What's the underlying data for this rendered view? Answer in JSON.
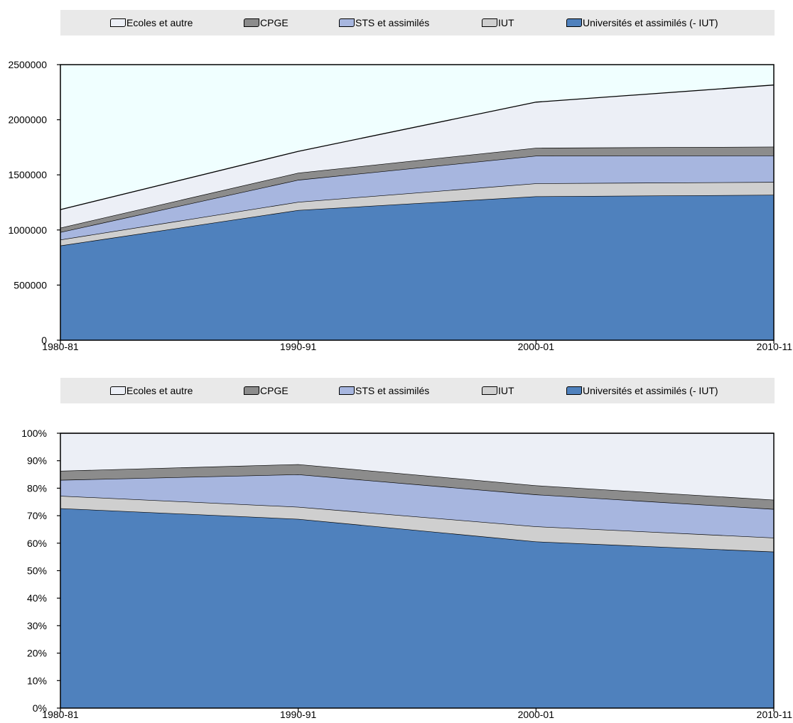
{
  "legend": {
    "items": [
      {
        "label": "Ecoles et autre",
        "color": "#eceff6"
      },
      {
        "label": "CPGE",
        "color": "#8c8c8c"
      },
      {
        "label": "STS et assimilés",
        "color": "#a7b6df"
      },
      {
        "label": "IUT",
        "color": "#cfcfcf"
      },
      {
        "label": "Universités et assimilés (- IUT)",
        "color": "#4f81bd"
      }
    ]
  },
  "colors": {
    "plot_background": "#f0ffff",
    "legend_background": "#e9e9e9",
    "outline": "#000000"
  },
  "chart_data": [
    {
      "type": "area",
      "stacked": true,
      "categories": [
        "1980-81",
        "1990-91",
        "2000-01",
        "2010-11"
      ],
      "series": [
        {
          "name": "Universités et assimilés (- IUT)",
          "values": [
            858000,
            1180000,
            1305000,
            1318000
          ]
        },
        {
          "name": "IUT",
          "values": [
            54000,
            74000,
            118000,
            117000
          ]
        },
        {
          "name": "STS et assimilés",
          "values": [
            68000,
            200000,
            250000,
            240000
          ]
        },
        {
          "name": "CPGE",
          "values": [
            40000,
            64000,
            72000,
            80000
          ]
        },
        {
          "name": "Ecoles et autre",
          "values": [
            165000,
            195000,
            415000,
            560000
          ]
        }
      ],
      "y_ticks": [
        "0",
        "500000",
        "1000000",
        "1500000",
        "2000000",
        "2500000"
      ],
      "ylim": [
        0,
        2500000
      ],
      "grid": false,
      "legend_position": "top"
    },
    {
      "type": "area",
      "stacked": true,
      "percent": true,
      "categories": [
        "1980-81",
        "1990-91",
        "2000-01",
        "2010-11"
      ],
      "series": [
        {
          "name": "Universités et assimilés (- IUT)",
          "values": [
            72.7,
            68.8,
            60.6,
            56.9
          ]
        },
        {
          "name": "IUT",
          "values": [
            4.5,
            4.4,
            5.5,
            5.1
          ]
        },
        {
          "name": "STS et assimilés",
          "values": [
            5.8,
            11.8,
            11.6,
            10.4
          ]
        },
        {
          "name": "CPGE",
          "values": [
            3.3,
            3.7,
            3.3,
            3.4
          ]
        },
        {
          "name": "Ecoles et autre",
          "values": [
            13.7,
            11.3,
            19.0,
            24.2
          ]
        }
      ],
      "y_ticks": [
        "0%",
        "10%",
        "20%",
        "30%",
        "40%",
        "50%",
        "60%",
        "70%",
        "80%",
        "90%",
        "100%"
      ],
      "ylim": [
        0,
        100
      ],
      "grid": false,
      "legend_position": "top"
    }
  ]
}
